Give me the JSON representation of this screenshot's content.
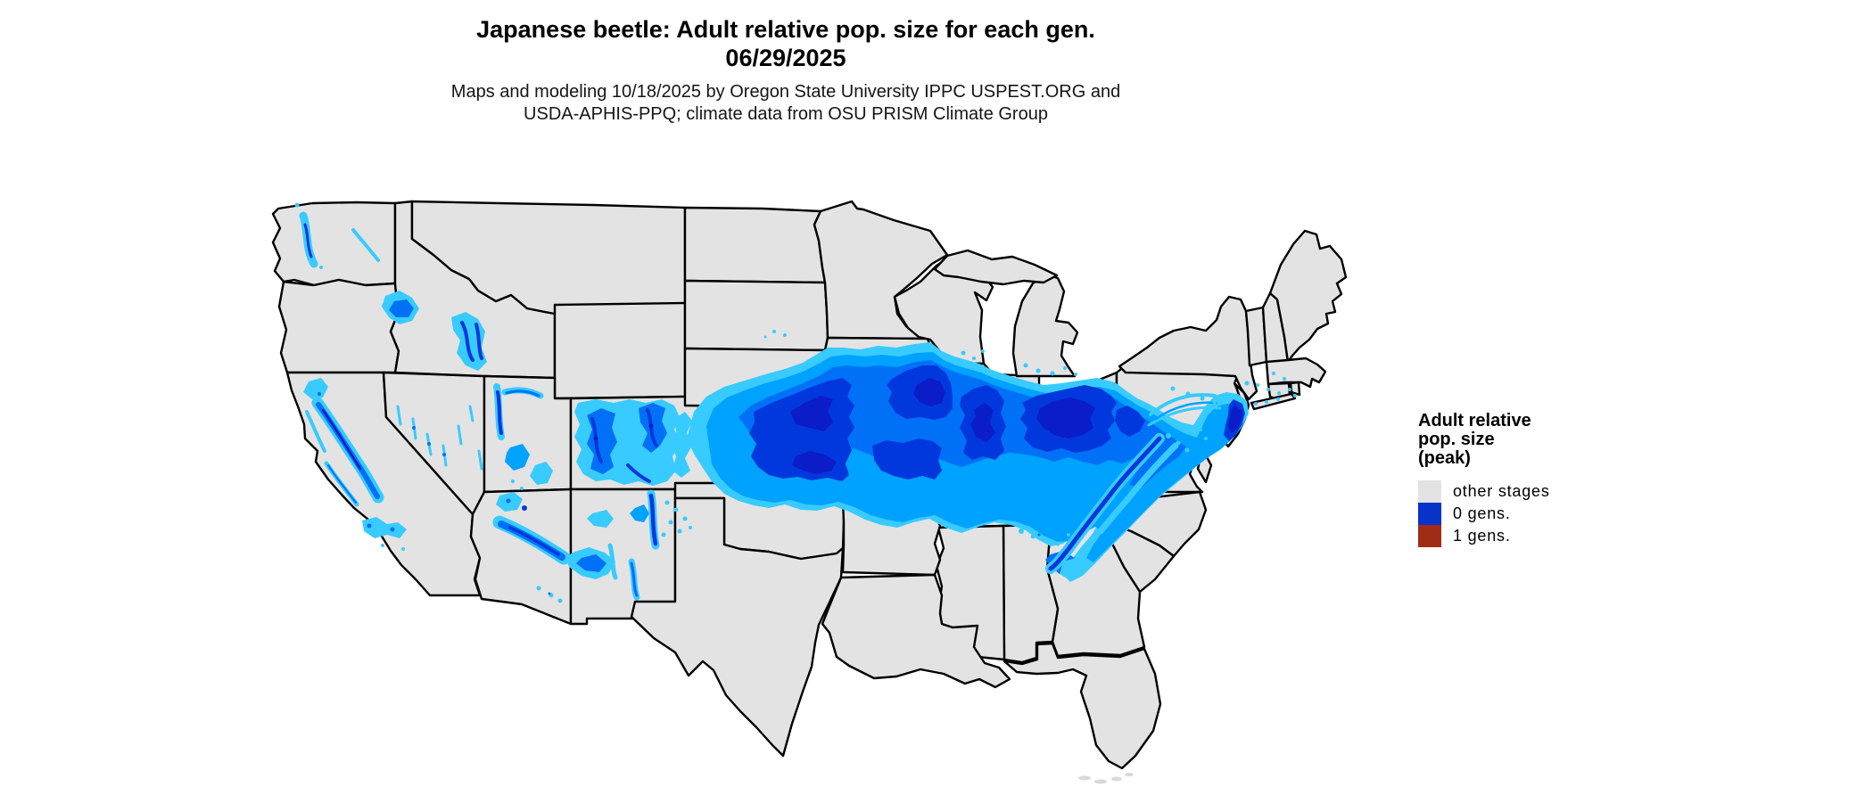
{
  "header": {
    "title": "Japanese beetle: Adult relative pop. size for each gen.",
    "date": "06/29/2025",
    "subtitle_line1": "Maps and modeling 10/18/2025 by Oregon State University IPPC USPEST.ORG and",
    "subtitle_line2": "USDA-APHIS-PPQ; climate data from OSU PRISM Climate Group"
  },
  "legend": {
    "title_lines": [
      "Adult relative",
      "pop. size",
      "(peak)"
    ],
    "items": [
      {
        "label": "other stages",
        "color": "#e3e3e3"
      },
      {
        "label": "0 gens.",
        "color": "#0733cb"
      },
      {
        "label": "1 gens.",
        "color": "#a22b16"
      }
    ]
  },
  "map": {
    "background": "#ffffff",
    "state_fill": "#e3e3e3",
    "state_border": "#000000",
    "minor_island_fill": "#d9d9d9",
    "population_palette": [
      "#38cbff",
      "#00a2ff",
      "#0071f7",
      "#0038dd",
      "#0b1cc9"
    ]
  }
}
